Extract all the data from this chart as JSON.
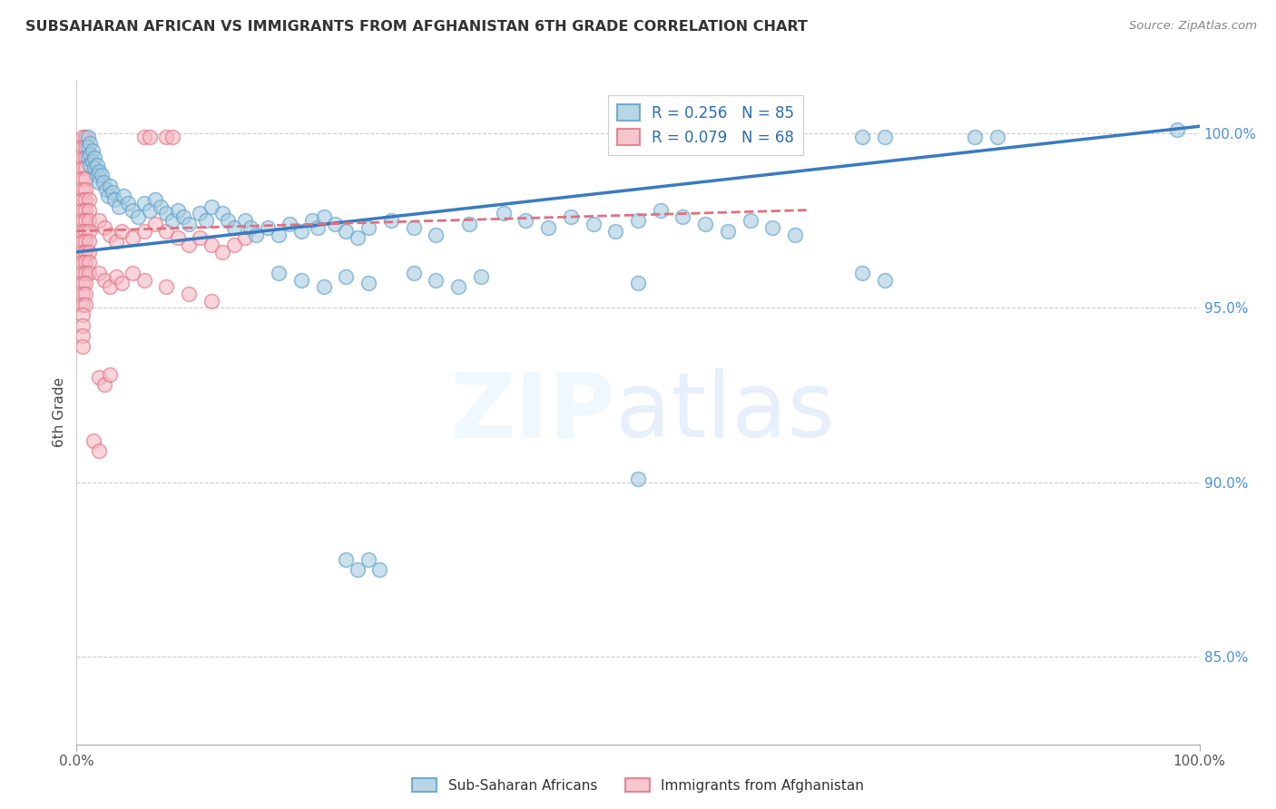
{
  "title": "SUBSAHARAN AFRICAN VS IMMIGRANTS FROM AFGHANISTAN 6TH GRADE CORRELATION CHART",
  "source": "Source: ZipAtlas.com",
  "ylabel": "6th Grade",
  "ytick_labels": [
    "100.0%",
    "95.0%",
    "90.0%",
    "85.0%"
  ],
  "ytick_positions": [
    1.0,
    0.95,
    0.9,
    0.85
  ],
  "xlim": [
    0.0,
    1.0
  ],
  "ylim": [
    0.825,
    1.015
  ],
  "color_blue": "#a8cce0",
  "color_pink": "#f4b8c4",
  "edge_blue": "#5b9dc9",
  "edge_pink": "#e07080",
  "line_blue": "#3a7bbf",
  "line_pink": "#e07080",
  "blue_line": [
    [
      0.0,
      0.966
    ],
    [
      1.0,
      1.002
    ]
  ],
  "pink_line": [
    [
      0.0,
      0.972
    ],
    [
      0.65,
      0.978
    ]
  ],
  "blue_scatter": [
    [
      0.01,
      0.999
    ],
    [
      0.01,
      0.996
    ],
    [
      0.01,
      0.993
    ],
    [
      0.012,
      0.997
    ],
    [
      0.012,
      0.994
    ],
    [
      0.012,
      0.991
    ],
    [
      0.014,
      0.995
    ],
    [
      0.014,
      0.992
    ],
    [
      0.016,
      0.993
    ],
    [
      0.016,
      0.99
    ],
    [
      0.018,
      0.991
    ],
    [
      0.018,
      0.988
    ],
    [
      0.02,
      0.989
    ],
    [
      0.02,
      0.986
    ],
    [
      0.022,
      0.988
    ],
    [
      0.024,
      0.986
    ],
    [
      0.026,
      0.984
    ],
    [
      0.028,
      0.982
    ],
    [
      0.03,
      0.985
    ],
    [
      0.032,
      0.983
    ],
    [
      0.034,
      0.981
    ],
    [
      0.038,
      0.979
    ],
    [
      0.042,
      0.982
    ],
    [
      0.046,
      0.98
    ],
    [
      0.05,
      0.978
    ],
    [
      0.055,
      0.976
    ],
    [
      0.06,
      0.98
    ],
    [
      0.065,
      0.978
    ],
    [
      0.07,
      0.981
    ],
    [
      0.075,
      0.979
    ],
    [
      0.08,
      0.977
    ],
    [
      0.085,
      0.975
    ],
    [
      0.09,
      0.978
    ],
    [
      0.095,
      0.976
    ],
    [
      0.1,
      0.974
    ],
    [
      0.11,
      0.977
    ],
    [
      0.115,
      0.975
    ],
    [
      0.12,
      0.979
    ],
    [
      0.13,
      0.977
    ],
    [
      0.135,
      0.975
    ],
    [
      0.14,
      0.973
    ],
    [
      0.15,
      0.975
    ],
    [
      0.155,
      0.973
    ],
    [
      0.16,
      0.971
    ],
    [
      0.17,
      0.973
    ],
    [
      0.18,
      0.971
    ],
    [
      0.19,
      0.974
    ],
    [
      0.2,
      0.972
    ],
    [
      0.21,
      0.975
    ],
    [
      0.215,
      0.973
    ],
    [
      0.22,
      0.976
    ],
    [
      0.23,
      0.974
    ],
    [
      0.24,
      0.972
    ],
    [
      0.25,
      0.97
    ],
    [
      0.26,
      0.973
    ],
    [
      0.28,
      0.975
    ],
    [
      0.3,
      0.973
    ],
    [
      0.32,
      0.971
    ],
    [
      0.35,
      0.974
    ],
    [
      0.38,
      0.977
    ],
    [
      0.4,
      0.975
    ],
    [
      0.42,
      0.973
    ],
    [
      0.44,
      0.976
    ],
    [
      0.46,
      0.974
    ],
    [
      0.48,
      0.972
    ],
    [
      0.5,
      0.975
    ],
    [
      0.52,
      0.978
    ],
    [
      0.54,
      0.976
    ],
    [
      0.56,
      0.974
    ],
    [
      0.58,
      0.972
    ],
    [
      0.6,
      0.975
    ],
    [
      0.62,
      0.973
    ],
    [
      0.64,
      0.971
    ],
    [
      0.7,
      0.999
    ],
    [
      0.72,
      0.999
    ],
    [
      0.8,
      0.999
    ],
    [
      0.82,
      0.999
    ],
    [
      0.98,
      1.001
    ],
    [
      0.18,
      0.96
    ],
    [
      0.2,
      0.958
    ],
    [
      0.22,
      0.956
    ],
    [
      0.24,
      0.959
    ],
    [
      0.26,
      0.957
    ],
    [
      0.3,
      0.96
    ],
    [
      0.32,
      0.958
    ],
    [
      0.34,
      0.956
    ],
    [
      0.36,
      0.959
    ],
    [
      0.5,
      0.957
    ],
    [
      0.7,
      0.96
    ],
    [
      0.72,
      0.958
    ],
    [
      0.24,
      0.878
    ],
    [
      0.25,
      0.875
    ],
    [
      0.26,
      0.878
    ],
    [
      0.27,
      0.875
    ],
    [
      0.5,
      0.901
    ]
  ],
  "pink_scatter": [
    [
      0.005,
      0.999
    ],
    [
      0.008,
      0.999
    ],
    [
      0.005,
      0.996
    ],
    [
      0.008,
      0.996
    ],
    [
      0.005,
      0.993
    ],
    [
      0.008,
      0.993
    ],
    [
      0.005,
      0.99
    ],
    [
      0.008,
      0.99
    ],
    [
      0.005,
      0.987
    ],
    [
      0.008,
      0.987
    ],
    [
      0.005,
      0.984
    ],
    [
      0.008,
      0.984
    ],
    [
      0.005,
      0.981
    ],
    [
      0.008,
      0.981
    ],
    [
      0.011,
      0.981
    ],
    [
      0.005,
      0.978
    ],
    [
      0.008,
      0.978
    ],
    [
      0.011,
      0.978
    ],
    [
      0.005,
      0.975
    ],
    [
      0.008,
      0.975
    ],
    [
      0.011,
      0.975
    ],
    [
      0.005,
      0.972
    ],
    [
      0.008,
      0.972
    ],
    [
      0.011,
      0.972
    ],
    [
      0.005,
      0.969
    ],
    [
      0.008,
      0.969
    ],
    [
      0.011,
      0.969
    ],
    [
      0.005,
      0.966
    ],
    [
      0.008,
      0.966
    ],
    [
      0.011,
      0.966
    ],
    [
      0.005,
      0.963
    ],
    [
      0.008,
      0.963
    ],
    [
      0.011,
      0.963
    ],
    [
      0.005,
      0.96
    ],
    [
      0.008,
      0.96
    ],
    [
      0.011,
      0.96
    ],
    [
      0.005,
      0.957
    ],
    [
      0.008,
      0.957
    ],
    [
      0.005,
      0.954
    ],
    [
      0.008,
      0.954
    ],
    [
      0.005,
      0.951
    ],
    [
      0.008,
      0.951
    ],
    [
      0.005,
      0.948
    ],
    [
      0.005,
      0.945
    ],
    [
      0.005,
      0.942
    ],
    [
      0.005,
      0.939
    ],
    [
      0.02,
      0.975
    ],
    [
      0.025,
      0.973
    ],
    [
      0.03,
      0.971
    ],
    [
      0.035,
      0.969
    ],
    [
      0.04,
      0.972
    ],
    [
      0.05,
      0.97
    ],
    [
      0.06,
      0.972
    ],
    [
      0.07,
      0.974
    ],
    [
      0.08,
      0.972
    ],
    [
      0.09,
      0.97
    ],
    [
      0.1,
      0.968
    ],
    [
      0.11,
      0.97
    ],
    [
      0.12,
      0.968
    ],
    [
      0.13,
      0.966
    ],
    [
      0.14,
      0.968
    ],
    [
      0.15,
      0.97
    ],
    [
      0.02,
      0.96
    ],
    [
      0.025,
      0.958
    ],
    [
      0.03,
      0.956
    ],
    [
      0.035,
      0.959
    ],
    [
      0.04,
      0.957
    ],
    [
      0.05,
      0.96
    ],
    [
      0.06,
      0.958
    ],
    [
      0.08,
      0.956
    ],
    [
      0.1,
      0.954
    ],
    [
      0.12,
      0.952
    ],
    [
      0.02,
      0.93
    ],
    [
      0.025,
      0.928
    ],
    [
      0.03,
      0.931
    ],
    [
      0.015,
      0.912
    ],
    [
      0.02,
      0.909
    ],
    [
      0.06,
      0.999
    ],
    [
      0.065,
      0.999
    ],
    [
      0.08,
      0.999
    ],
    [
      0.085,
      0.999
    ]
  ]
}
